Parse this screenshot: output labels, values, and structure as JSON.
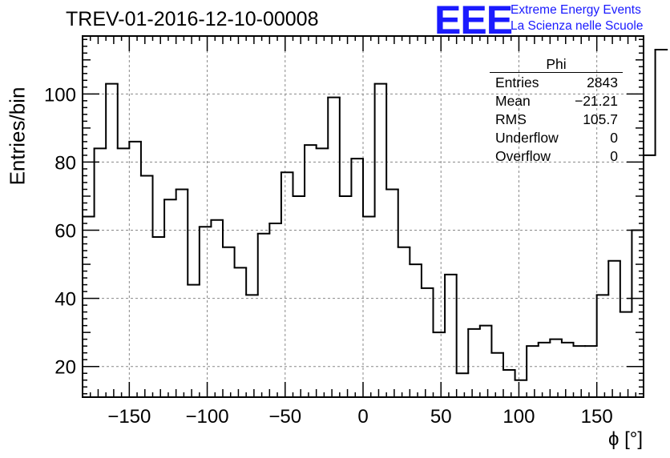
{
  "title": "TREV-01-2016-12-10-00008",
  "logo": {
    "mark": "EEE",
    "line1": "Extreme Energy Events",
    "line2": "La Scienza nelle Scuole",
    "color": "#1a1aff"
  },
  "stats_box": {
    "name": "Phi",
    "rows": [
      {
        "label": "Entries",
        "value": "2843"
      },
      {
        "label": "Mean",
        "value": "−21.21"
      },
      {
        "label": "RMS",
        "value": "105.7"
      },
      {
        "label": "Underflow",
        "value": "0"
      },
      {
        "label": "Overflow",
        "value": "0"
      }
    ]
  },
  "chart_data": {
    "type": "histogram",
    "title": "TREV-01-2016-12-10-00008",
    "xlabel": "ϕ [°]",
    "ylabel": "Entries/bin",
    "xlim": [
      -180,
      180
    ],
    "ylim": [
      11,
      117
    ],
    "bin_width": 7.5,
    "bin_edges_start": -180,
    "values": [
      64,
      84,
      103,
      84,
      86,
      76,
      58,
      69,
      72,
      44,
      61,
      63,
      55,
      49,
      41,
      59,
      62,
      77,
      70,
      85,
      84,
      99,
      70,
      81,
      64,
      103,
      72,
      55,
      50,
      43,
      30,
      47,
      18,
      31,
      32,
      24,
      19,
      16,
      26,
      27,
      28,
      27,
      26,
      26,
      41,
      51,
      36,
      60,
      82,
      113
    ],
    "xticks": [
      -150,
      -100,
      -50,
      0,
      50,
      100,
      150
    ],
    "xtick_labels": [
      "−150",
      "−100",
      "−50",
      "0",
      "50",
      "100",
      "150"
    ],
    "yticks": [
      20,
      40,
      60,
      80,
      100
    ],
    "ytick_labels": [
      "20",
      "40",
      "60",
      "80",
      "100"
    ],
    "grid": true,
    "line_color": "#000000"
  }
}
